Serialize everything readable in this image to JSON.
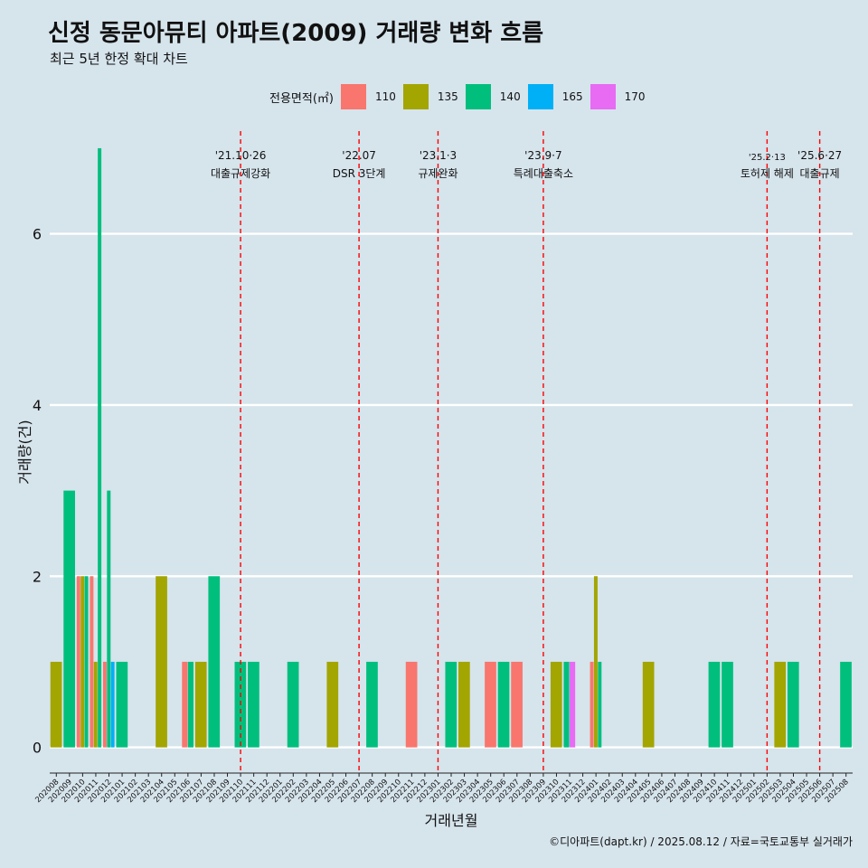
{
  "page": {
    "title": "신정 동문아뮤티 아파트(2009) 거래량 변화 흐름",
    "subtitle": "최근 5년 한정 확대 차트",
    "caption": "©디아파트(dapt.kr) / 2025.08.12 / 자료=국토교통부 실거래가"
  },
  "chart_data": {
    "type": "bar",
    "title": "신정 동문아뮤티 아파트(2009) 거래량 변화 흐름",
    "subtitle": "최근 5년 한정 확대 차트",
    "xlabel": "거래년월",
    "ylabel": "거래량(건)",
    "ylim": [
      -0.3,
      7.2
    ],
    "yticks": [
      0,
      2,
      4,
      6
    ],
    "grid": "horizontal",
    "legend": {
      "title": "전용면적(㎡)",
      "position": "top"
    },
    "series": [
      {
        "name": "110",
        "color": "#f8766d"
      },
      {
        "name": "135",
        "color": "#a3a500"
      },
      {
        "name": "140",
        "color": "#00bf7d"
      },
      {
        "name": "165",
        "color": "#00b0f6"
      },
      {
        "name": "170",
        "color": "#e76bf3"
      }
    ],
    "categories": [
      "202008",
      "202009",
      "202010",
      "202011",
      "202012",
      "202101",
      "202102",
      "202103",
      "202104",
      "202105",
      "202106",
      "202107",
      "202108",
      "202109",
      "202110",
      "202111",
      "202112",
      "202201",
      "202202",
      "202203",
      "202204",
      "202205",
      "202206",
      "202207",
      "202208",
      "202209",
      "202210",
      "202211",
      "202212",
      "202301",
      "202302",
      "202303",
      "202304",
      "202305",
      "202306",
      "202307",
      "202308",
      "202309",
      "202310",
      "202311",
      "202312",
      "202401",
      "202402",
      "202403",
      "202404",
      "202405",
      "202406",
      "202407",
      "202408",
      "202409",
      "202410",
      "202411",
      "202412",
      "202501",
      "202502",
      "202503",
      "202504",
      "202505",
      "202506",
      "202507",
      "202508"
    ],
    "data": [
      {
        "month": "202008",
        "bars": [
          {
            "area": "135",
            "count": 1
          }
        ]
      },
      {
        "month": "202009",
        "bars": [
          {
            "area": "140",
            "count": 3
          }
        ]
      },
      {
        "month": "202010",
        "bars": [
          {
            "area": "110",
            "count": 2
          },
          {
            "area": "135",
            "count": 2
          },
          {
            "area": "140",
            "count": 2
          }
        ]
      },
      {
        "month": "202011",
        "bars": [
          {
            "area": "110",
            "count": 2
          },
          {
            "area": "135",
            "count": 1
          },
          {
            "area": "140",
            "count": 7
          }
        ]
      },
      {
        "month": "202012",
        "bars": [
          {
            "area": "110",
            "count": 1
          },
          {
            "area": "140",
            "count": 3
          },
          {
            "area": "165",
            "count": 1
          }
        ]
      },
      {
        "month": "202101",
        "bars": [
          {
            "area": "140",
            "count": 1
          }
        ]
      },
      {
        "month": "202104",
        "bars": [
          {
            "area": "135",
            "count": 2
          }
        ]
      },
      {
        "month": "202106",
        "bars": [
          {
            "area": "110",
            "count": 1
          },
          {
            "area": "140",
            "count": 1
          }
        ]
      },
      {
        "month": "202107",
        "bars": [
          {
            "area": "135",
            "count": 1
          }
        ]
      },
      {
        "month": "202108",
        "bars": [
          {
            "area": "140",
            "count": 2
          }
        ]
      },
      {
        "month": "202110",
        "bars": [
          {
            "area": "140",
            "count": 1
          }
        ]
      },
      {
        "month": "202111",
        "bars": [
          {
            "area": "140",
            "count": 1
          }
        ]
      },
      {
        "month": "202202",
        "bars": [
          {
            "area": "140",
            "count": 1
          }
        ]
      },
      {
        "month": "202205",
        "bars": [
          {
            "area": "135",
            "count": 1
          }
        ]
      },
      {
        "month": "202208",
        "bars": [
          {
            "area": "140",
            "count": 1
          }
        ]
      },
      {
        "month": "202211",
        "bars": [
          {
            "area": "110",
            "count": 1
          }
        ]
      },
      {
        "month": "202302",
        "bars": [
          {
            "area": "140",
            "count": 1
          }
        ]
      },
      {
        "month": "202303",
        "bars": [
          {
            "area": "135",
            "count": 1
          }
        ]
      },
      {
        "month": "202305",
        "bars": [
          {
            "area": "110",
            "count": 1
          }
        ]
      },
      {
        "month": "202306",
        "bars": [
          {
            "area": "140",
            "count": 1
          }
        ]
      },
      {
        "month": "202307",
        "bars": [
          {
            "area": "110",
            "count": 1
          }
        ]
      },
      {
        "month": "202310",
        "bars": [
          {
            "area": "135",
            "count": 1
          }
        ]
      },
      {
        "month": "202311",
        "bars": [
          {
            "area": "140",
            "count": 1
          },
          {
            "area": "170",
            "count": 1
          }
        ]
      },
      {
        "month": "202401",
        "bars": [
          {
            "area": "110",
            "count": 1
          },
          {
            "area": "135",
            "count": 2
          },
          {
            "area": "140",
            "count": 1
          }
        ]
      },
      {
        "month": "202405",
        "bars": [
          {
            "area": "135",
            "count": 1
          }
        ]
      },
      {
        "month": "202410",
        "bars": [
          {
            "area": "140",
            "count": 1
          }
        ]
      },
      {
        "month": "202411",
        "bars": [
          {
            "area": "140",
            "count": 1
          }
        ]
      },
      {
        "month": "202503",
        "bars": [
          {
            "area": "135",
            "count": 1
          }
        ]
      },
      {
        "month": "202504",
        "bars": [
          {
            "area": "140",
            "count": 1
          }
        ]
      },
      {
        "month": "202508",
        "bars": [
          {
            "area": "140",
            "count": 1
          }
        ]
      }
    ],
    "events": [
      {
        "date": "'21.10·26",
        "label": "대출규제강화",
        "month": "202110"
      },
      {
        "date": "'22.07",
        "label": "DSR 3단계",
        "month": "202207"
      },
      {
        "date": "'23.1·3",
        "label": "규제완화",
        "month": "202301"
      },
      {
        "date": "'23.9·7",
        "label": "특례대출축소",
        "month": "202309"
      },
      {
        "date": "'25.2·13",
        "label": "토허제 해제",
        "month": "202502"
      },
      {
        "date": "'25.6·27",
        "label": "대출규제",
        "month": "202506"
      }
    ],
    "event_line_color": "#ff0000"
  }
}
